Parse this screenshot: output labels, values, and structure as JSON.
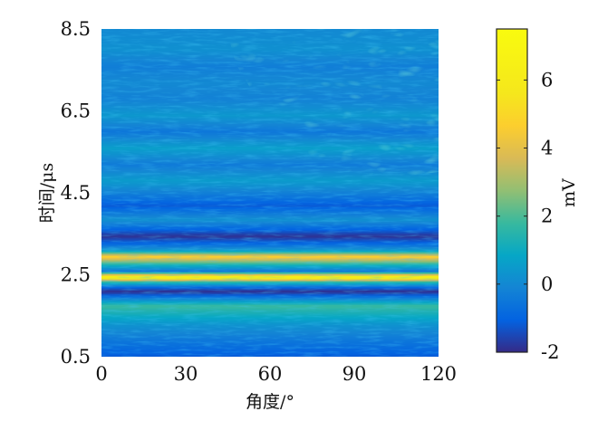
{
  "chart_data": {
    "type": "heatmap",
    "title": "",
    "xlabel": "角度/°",
    "ylabel": "时间/μs",
    "xlim": [
      0,
      120
    ],
    "ylim": [
      0.5,
      8.5
    ],
    "x_ticks": [
      "0",
      "30",
      "60",
      "90",
      "120"
    ],
    "y_ticks": [
      "0.5",
      "2.5",
      "4.5",
      "6.5",
      "8.5"
    ],
    "colorbar": {
      "label": "mV",
      "range": [
        -2,
        7.5
      ],
      "ticks": [
        "-2",
        "0",
        "2",
        "4",
        "6"
      ],
      "colormap": "parula"
    },
    "time_us": [
      0.5,
      0.9,
      1.3,
      1.75,
      2.0,
      2.1,
      2.2,
      2.33,
      2.45,
      2.6,
      2.75,
      2.95,
      3.1,
      3.25,
      3.45,
      3.7,
      3.85,
      4.2,
      4.5,
      4.8,
      5.2,
      5.6,
      6.0,
      6.4,
      6.8,
      7.2,
      7.6,
      8.0,
      8.5
    ],
    "level_mV": [
      -1.2,
      -0.5,
      0.3,
      1.8,
      -1.0,
      -2.0,
      -1.0,
      1.5,
      7.0,
      -0.5,
      1.2,
      4.8,
      0.5,
      -0.8,
      -1.9,
      -0.6,
      0.2,
      -1.2,
      -0.3,
      0.5,
      -0.4,
      0.6,
      -0.5,
      0.4,
      -0.2,
      0.0,
      -0.3,
      0.2,
      0.0
    ],
    "texture_region": "upper-right wave fronts from 60 to 120 degrees above 5.5 μs"
  }
}
